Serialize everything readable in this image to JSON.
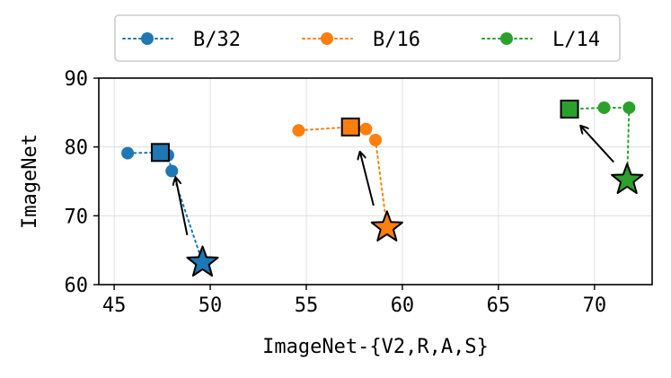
{
  "chart_data": {
    "type": "scatter",
    "xlabel": "ImageNet-{V2,R,A,S}",
    "ylabel": "ImageNet",
    "xlim": [
      44.2,
      73.0
    ],
    "ylim": [
      60,
      90
    ],
    "xticks": [
      "45",
      "50",
      "55",
      "60",
      "65",
      "70"
    ],
    "yticks": [
      "60",
      "70",
      "80",
      "90"
    ],
    "grid": true,
    "legend_position": "top-center",
    "series": [
      {
        "name": "B/32",
        "color": "#1f77b4",
        "points": [
          {
            "x": 49.6,
            "y": 63.2
          },
          {
            "x": 48.0,
            "y": 76.5
          },
          {
            "x": 47.8,
            "y": 78.8
          },
          {
            "x": 47.4,
            "y": 79.2
          },
          {
            "x": 45.7,
            "y": 79.1
          }
        ],
        "star": {
          "x": 49.6,
          "y": 63.2
        },
        "square": {
          "x": 47.4,
          "y": 79.2
        },
        "arrow": {
          "from": {
            "x": 48.8,
            "y": 67.2
          },
          "to": {
            "x": 48.2,
            "y": 75.5
          }
        }
      },
      {
        "name": "B/16",
        "color": "#ff7f0e",
        "points": [
          {
            "x": 59.2,
            "y": 68.3
          },
          {
            "x": 58.6,
            "y": 81.0
          },
          {
            "x": 58.1,
            "y": 82.6
          },
          {
            "x": 57.3,
            "y": 82.9
          },
          {
            "x": 54.6,
            "y": 82.4
          }
        ],
        "star": {
          "x": 59.2,
          "y": 68.3
        },
        "square": {
          "x": 57.3,
          "y": 82.9
        },
        "arrow": {
          "from": {
            "x": 58.5,
            "y": 71.5
          },
          "to": {
            "x": 57.8,
            "y": 79.2
          }
        }
      },
      {
        "name": "L/14",
        "color": "#2ca02c",
        "points": [
          {
            "x": 71.7,
            "y": 75.2
          },
          {
            "x": 71.8,
            "y": 85.7
          },
          {
            "x": 70.5,
            "y": 85.7
          },
          {
            "x": 68.7,
            "y": 85.5
          }
        ],
        "star": {
          "x": 71.7,
          "y": 75.2
        },
        "square": {
          "x": 68.7,
          "y": 85.5
        },
        "arrow": {
          "from": {
            "x": 71.0,
            "y": 77.8
          },
          "to": {
            "x": 69.3,
            "y": 83.0
          }
        }
      }
    ]
  }
}
